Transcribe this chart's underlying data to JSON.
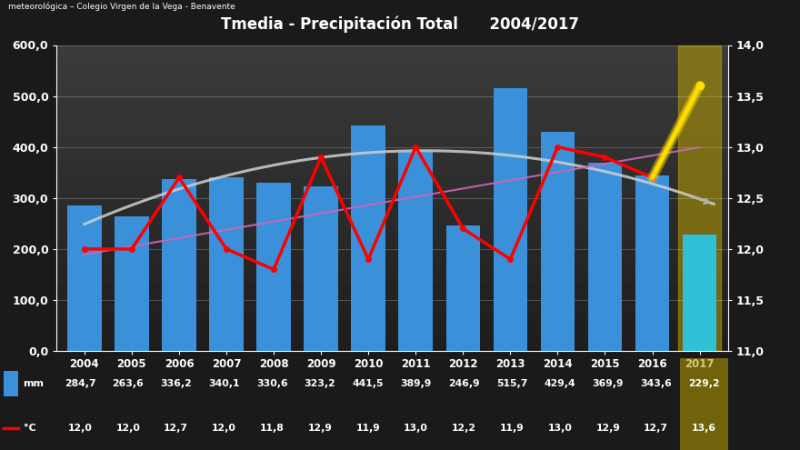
{
  "years": [
    2004,
    2005,
    2006,
    2007,
    2008,
    2009,
    2010,
    2011,
    2012,
    2013,
    2014,
    2015,
    2016,
    2017
  ],
  "precip": [
    284.7,
    263.6,
    336.2,
    340.1,
    330.6,
    323.2,
    441.5,
    389.9,
    246.9,
    515.7,
    429.4,
    369.9,
    343.6,
    229.2
  ],
  "temp": [
    12.0,
    12.0,
    12.7,
    12.0,
    11.8,
    12.9,
    11.9,
    13.0,
    12.2,
    11.9,
    13.0,
    12.9,
    12.7,
    13.6
  ],
  "bar_color_normal": "#3a90d9",
  "bar_color_2017": "#30c0d8",
  "bar_color_2017_bg": "#b8a000",
  "title": "Tmedia - Precipitación Total      2004/2017",
  "subtitle": "meteorológica – Colegio Virgen de la Vega - Benavente",
  "ylim_left": [
    0,
    600
  ],
  "ylim_right": [
    11.0,
    14.0
  ],
  "yticks_left": [
    0,
    100,
    200,
    300,
    400,
    500,
    600
  ],
  "yticks_right": [
    11.0,
    11.5,
    12.0,
    12.5,
    13.0,
    13.5,
    14.0
  ],
  "line_color_temp": "#ff0000",
  "line_color_trend_precip": "#d0d0d0",
  "line_color_trend_temp": "#cc66bb",
  "highlight_color": "#ffdd00",
  "precip_labels": [
    "284,7",
    "263,6",
    "336,2",
    "340,1",
    "330,6",
    "323,2",
    "441,5",
    "389,9",
    "246,9",
    "515,7",
    "429,4",
    "369,9",
    "343,6",
    "229,2"
  ],
  "temp_labels": [
    "12,0",
    "12,0",
    "12,7",
    "12,0",
    "11,8",
    "12,9",
    "11,9",
    "13,0",
    "12,2",
    "11,9",
    "13,0",
    "12,9",
    "12,7",
    "13,6"
  ]
}
